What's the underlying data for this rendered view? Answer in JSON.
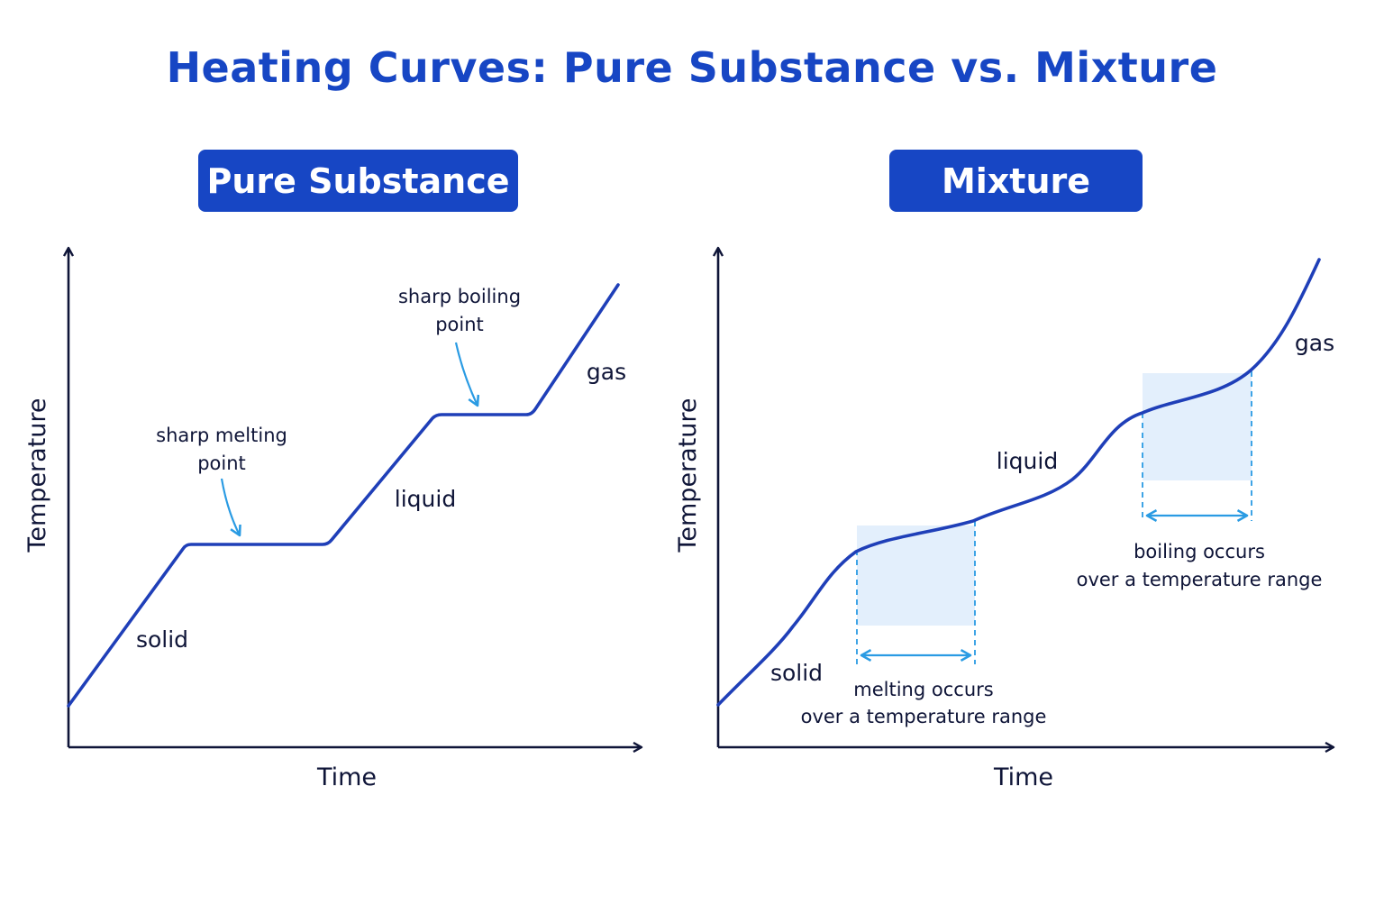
{
  "title": "Heating Curves: Pure Substance vs. Mixture",
  "colors": {
    "primary": "#1746c4",
    "curve": "#1f3fb8",
    "accent_arrow": "#2a9be3",
    "shade": "#e3effc",
    "axis": "#0f1538"
  },
  "panels": {
    "pure": {
      "badge": "Pure Substance",
      "x_axis_label": "Time",
      "y_axis_label": "Temperature",
      "regions": {
        "solid": "solid",
        "liquid": "liquid",
        "gas": "gas"
      },
      "notes": {
        "melting_line1": "sharp melting",
        "melting_line2": "point",
        "boiling_line1": "sharp boiling",
        "boiling_line2": "point"
      }
    },
    "mixture": {
      "badge": "Mixture",
      "x_axis_label": "Time",
      "y_axis_label": "Temperature",
      "regions": {
        "solid": "solid",
        "liquid": "liquid",
        "gas": "gas"
      },
      "notes": {
        "melting_line1": "melting occurs",
        "melting_line2": "over a temperature range",
        "boiling_line1": "boiling occurs",
        "boiling_line2": "over a temperature range"
      }
    }
  }
}
